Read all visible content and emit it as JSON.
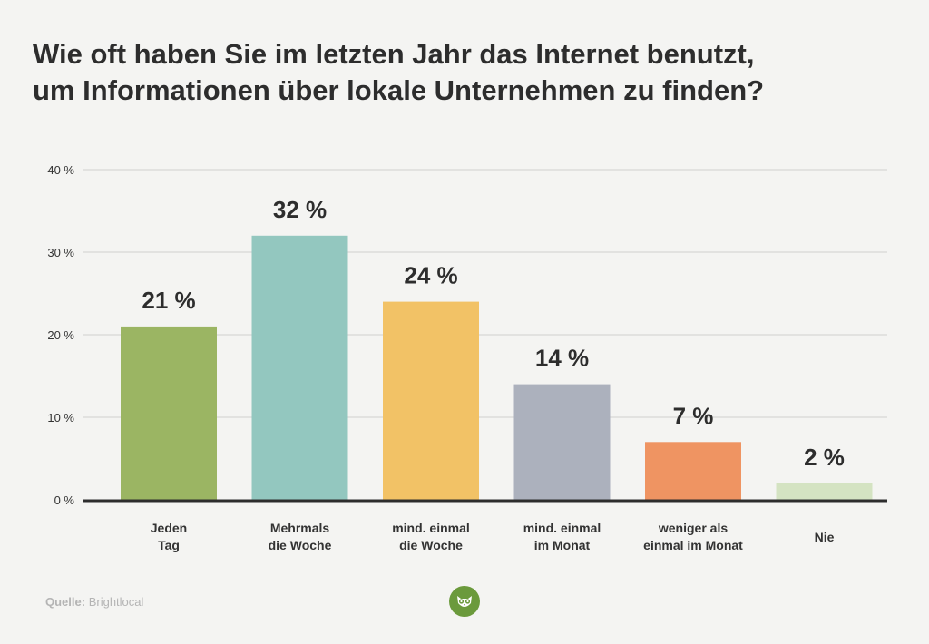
{
  "title": {
    "line1": "Wie oft haben Sie im letzten Jahr das Internet benutzt,",
    "line2": "um Informationen über lokale Unternehmen zu finden?"
  },
  "chart_data": {
    "type": "bar",
    "title": "Wie oft haben Sie im letzten Jahr das Internet benutzt, um Informationen über lokale Unternehmen zu finden?",
    "categories": [
      [
        "Jeden",
        "Tag"
      ],
      [
        "Mehrmals",
        "die Woche"
      ],
      [
        "mind. einmal",
        "die Woche"
      ],
      [
        "mind. einmal",
        "im Monat"
      ],
      [
        "weniger als",
        "einmal im Monat"
      ],
      [
        "Nie"
      ]
    ],
    "values": [
      21,
      32,
      24,
      14,
      7,
      2
    ],
    "value_labels": [
      "21 %",
      "32 %",
      "24 %",
      "14 %",
      "7 %",
      "2 %"
    ],
    "colors": [
      "#9bb563",
      "#93c7bf",
      "#f2c266",
      "#acb1bd",
      "#ef9462",
      "#d4e3c2"
    ],
    "yticks": [
      0,
      10,
      20,
      30,
      40
    ],
    "ytick_labels": [
      "0 %",
      "10 %",
      "20 %",
      "30 %",
      "40 %"
    ],
    "ylim": [
      0,
      40
    ],
    "xlabel": "",
    "ylabel": "",
    "grid": true,
    "legend": "none"
  },
  "source": {
    "label": "Quelle:",
    "text": "Brightlocal"
  },
  "logo": {
    "icon": "owl-icon",
    "color": "#6b9a3c"
  }
}
